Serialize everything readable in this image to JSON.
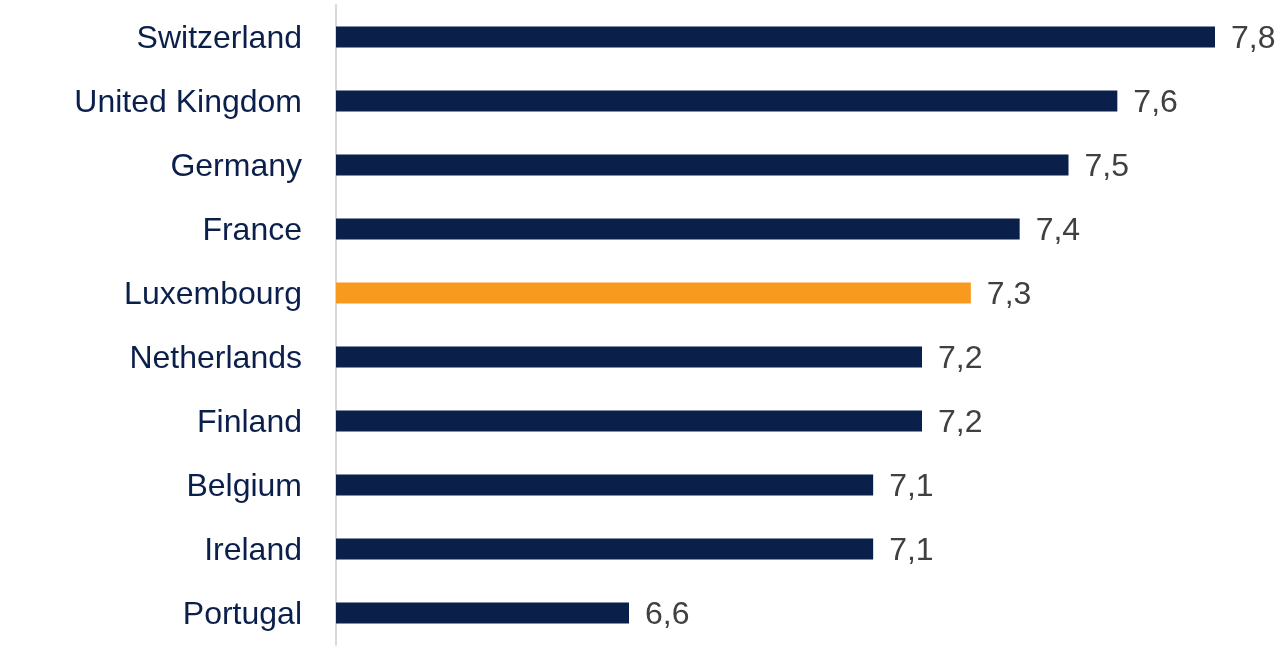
{
  "chart_data": {
    "type": "bar",
    "orientation": "horizontal",
    "categories": [
      "Switzerland",
      "United Kingdom",
      "Germany",
      "France",
      "Luxembourg",
      "Netherlands",
      "Finland",
      "Belgium",
      "Ireland",
      "Portugal"
    ],
    "values": [
      7.8,
      7.6,
      7.5,
      7.4,
      7.3,
      7.2,
      7.2,
      7.1,
      7.1,
      6.6
    ],
    "value_labels": [
      "7,8",
      "7,6",
      "7,5",
      "7,4",
      "7,3",
      "7,2",
      "7,2",
      "7,1",
      "7,1",
      "6,6"
    ],
    "colors": [
      "#0b1f4b",
      "#0b1f4b",
      "#0b1f4b",
      "#0b1f4b",
      "#f79a1e",
      "#0b1f4b",
      "#0b1f4b",
      "#0b1f4b",
      "#0b1f4b",
      "#0b1f4b"
    ],
    "xlim": [
      6,
      7.8
    ],
    "tick_labels": "y"
  }
}
